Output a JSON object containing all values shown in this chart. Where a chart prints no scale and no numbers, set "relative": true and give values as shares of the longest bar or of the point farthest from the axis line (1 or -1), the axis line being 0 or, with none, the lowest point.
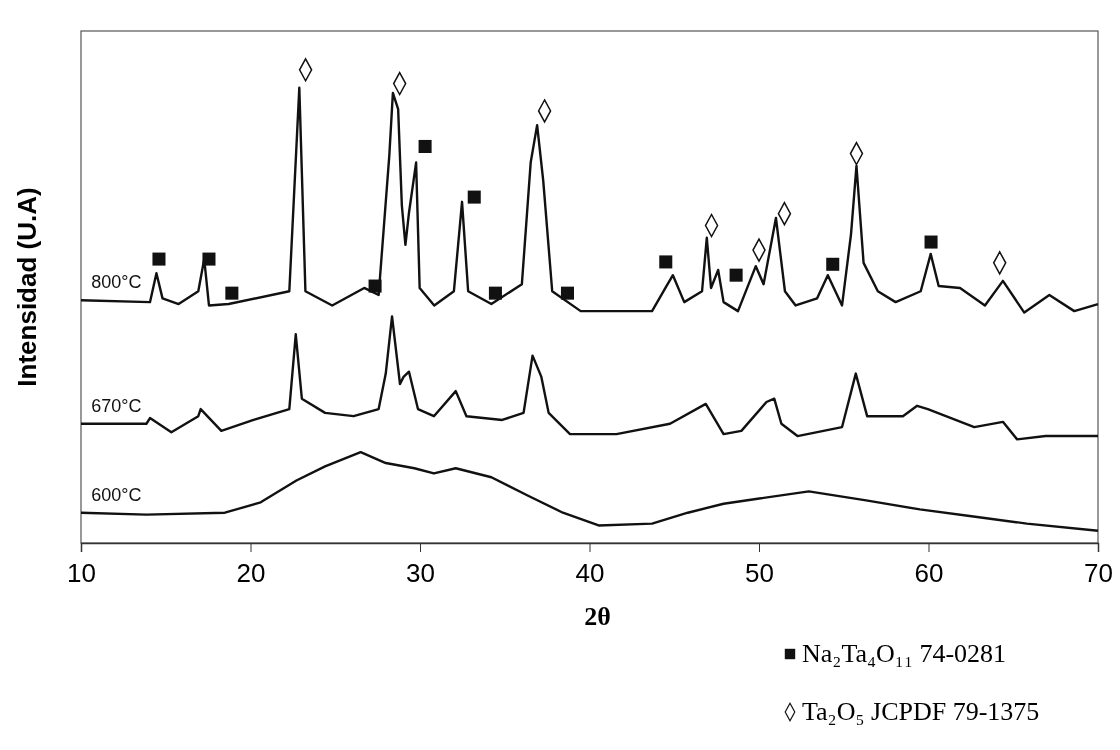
{
  "chart_data": {
    "type": "line",
    "relative": true,
    "xlabel": "2θ",
    "ylabel": "Intensidad (U.A)",
    "xlim": [
      10,
      70
    ],
    "xticks": [
      10,
      20,
      30,
      40,
      50,
      60,
      70
    ],
    "legend": "bottom right",
    "grid": false,
    "line_style": "solid",
    "series": [
      {
        "name": "800°C",
        "color": "#111111",
        "x": [
          10,
          14.07,
          14.45,
          14.81,
          15.76,
          16.92,
          17.27,
          17.55,
          18.71,
          22.29,
          22.88,
          23.24,
          24.82,
          26.71,
          27.56,
          28.19,
          28.4,
          28.71,
          28.93,
          29.14,
          29.35,
          29.77,
          29.98,
          30.84,
          32.0,
          32.48,
          32.84,
          34.21,
          36.01,
          36.53,
          36.91,
          37.27,
          37.8,
          39.48,
          43.69,
          44.54,
          44.92,
          45.59,
          46.64,
          46.92,
          47.17,
          47.59,
          47.91,
          48.76,
          49.81,
          50.27,
          51.0,
          51.53,
          52.16,
          53.43,
          54.06,
          54.9,
          55.43,
          55.75,
          56.17,
          57.01,
          58.06,
          59.54,
          60.13,
          60.6,
          61.86,
          63.33,
          64.39,
          65.65,
          67.13,
          68.6,
          70
        ],
        "values": [
          0.513,
          0.509,
          0.57,
          0.517,
          0.505,
          0.532,
          0.6,
          0.502,
          0.505,
          0.532,
          0.962,
          0.532,
          0.502,
          0.539,
          0.524,
          0.819,
          0.951,
          0.917,
          0.713,
          0.63,
          0.698,
          0.804,
          0.539,
          0.502,
          0.532,
          0.721,
          0.532,
          0.505,
          0.547,
          0.804,
          0.883,
          0.766,
          0.532,
          0.49,
          0.49,
          0.543,
          0.566,
          0.509,
          0.532,
          0.645,
          0.539,
          0.577,
          0.509,
          0.49,
          0.585,
          0.547,
          0.687,
          0.532,
          0.502,
          0.517,
          0.566,
          0.502,
          0.653,
          0.797,
          0.592,
          0.532,
          0.509,
          0.532,
          0.611,
          0.543,
          0.539,
          0.502,
          0.554,
          0.487,
          0.524,
          0.49,
          0.505
        ]
      },
      {
        "name": "670°C",
        "color": "#111111",
        "x": [
          10,
          13.86,
          14.07,
          15.33,
          16.92,
          17.06,
          18.28,
          20.18,
          22.29,
          22.67,
          23.03,
          24.4,
          26.08,
          27.56,
          27.98,
          28.35,
          28.82,
          29.03,
          29.35,
          29.88,
          30.82,
          32.11,
          32.74,
          34.85,
          36.11,
          36.64,
          37.16,
          37.59,
          38.85,
          41.59,
          44.75,
          46.86,
          47.91,
          48.96,
          50.44,
          50.9,
          51.32,
          52.27,
          54.9,
          55.71,
          56.38,
          58.49,
          59.33,
          59.96,
          62.7,
          64.39,
          65.23,
          66.91,
          70
        ],
        "values": [
          0.252,
          0.252,
          0.264,
          0.234,
          0.268,
          0.283,
          0.237,
          0.26,
          0.283,
          0.441,
          0.305,
          0.275,
          0.268,
          0.283,
          0.358,
          0.479,
          0.336,
          0.351,
          0.362,
          0.283,
          0.268,
          0.321,
          0.268,
          0.26,
          0.275,
          0.396,
          0.351,
          0.275,
          0.23,
          0.23,
          0.252,
          0.294,
          0.23,
          0.237,
          0.298,
          0.305,
          0.252,
          0.226,
          0.245,
          0.358,
          0.268,
          0.268,
          0.29,
          0.283,
          0.245,
          0.256,
          0.219,
          0.226,
          0.226
        ]
      },
      {
        "name": "600°C",
        "color": "#111111",
        "x": [
          10,
          13.86,
          18.49,
          20.6,
          22.71,
          24.4,
          26.5,
          27.98,
          29.67,
          30.82,
          32.11,
          34.21,
          36.32,
          38.43,
          40.54,
          43.69,
          45.8,
          47.91,
          50.02,
          52.94,
          56.32,
          59.49,
          62.65,
          65.8,
          70
        ],
        "values": [
          0.064,
          0.06,
          0.064,
          0.086,
          0.132,
          0.162,
          0.192,
          0.169,
          0.158,
          0.147,
          0.158,
          0.139,
          0.101,
          0.064,
          0.037,
          0.041,
          0.064,
          0.083,
          0.094,
          0.109,
          0.09,
          0.071,
          0.056,
          0.041,
          0.026
        ]
      },
      {
        "type": "scatter",
        "name": "Na₂Ta₄O₁₁ 74-0281",
        "color": "#111111",
        "marker": "square",
        "x": [
          14.6,
          17.55,
          18.9,
          27.35,
          30.3,
          33.2,
          34.45,
          38.7,
          44.5,
          48.65,
          54.35,
          60.15
        ],
        "values": [
          0.6,
          0.6,
          0.528,
          0.543,
          0.838,
          0.731,
          0.528,
          0.528,
          0.594,
          0.566,
          0.589,
          0.636
        ]
      },
      {
        "type": "scatter",
        "name": "Ta₂O₅ JCPDF 79-1375",
        "color": "#111111",
        "marker": "diamond",
        "x": [
          23.25,
          28.8,
          37.35,
          47.2,
          50.0,
          51.5,
          55.75,
          64.2
        ],
        "values": [
          1.0,
          0.971,
          0.913,
          0.671,
          0.619,
          0.696,
          0.823,
          0.592
        ]
      }
    ]
  }
}
